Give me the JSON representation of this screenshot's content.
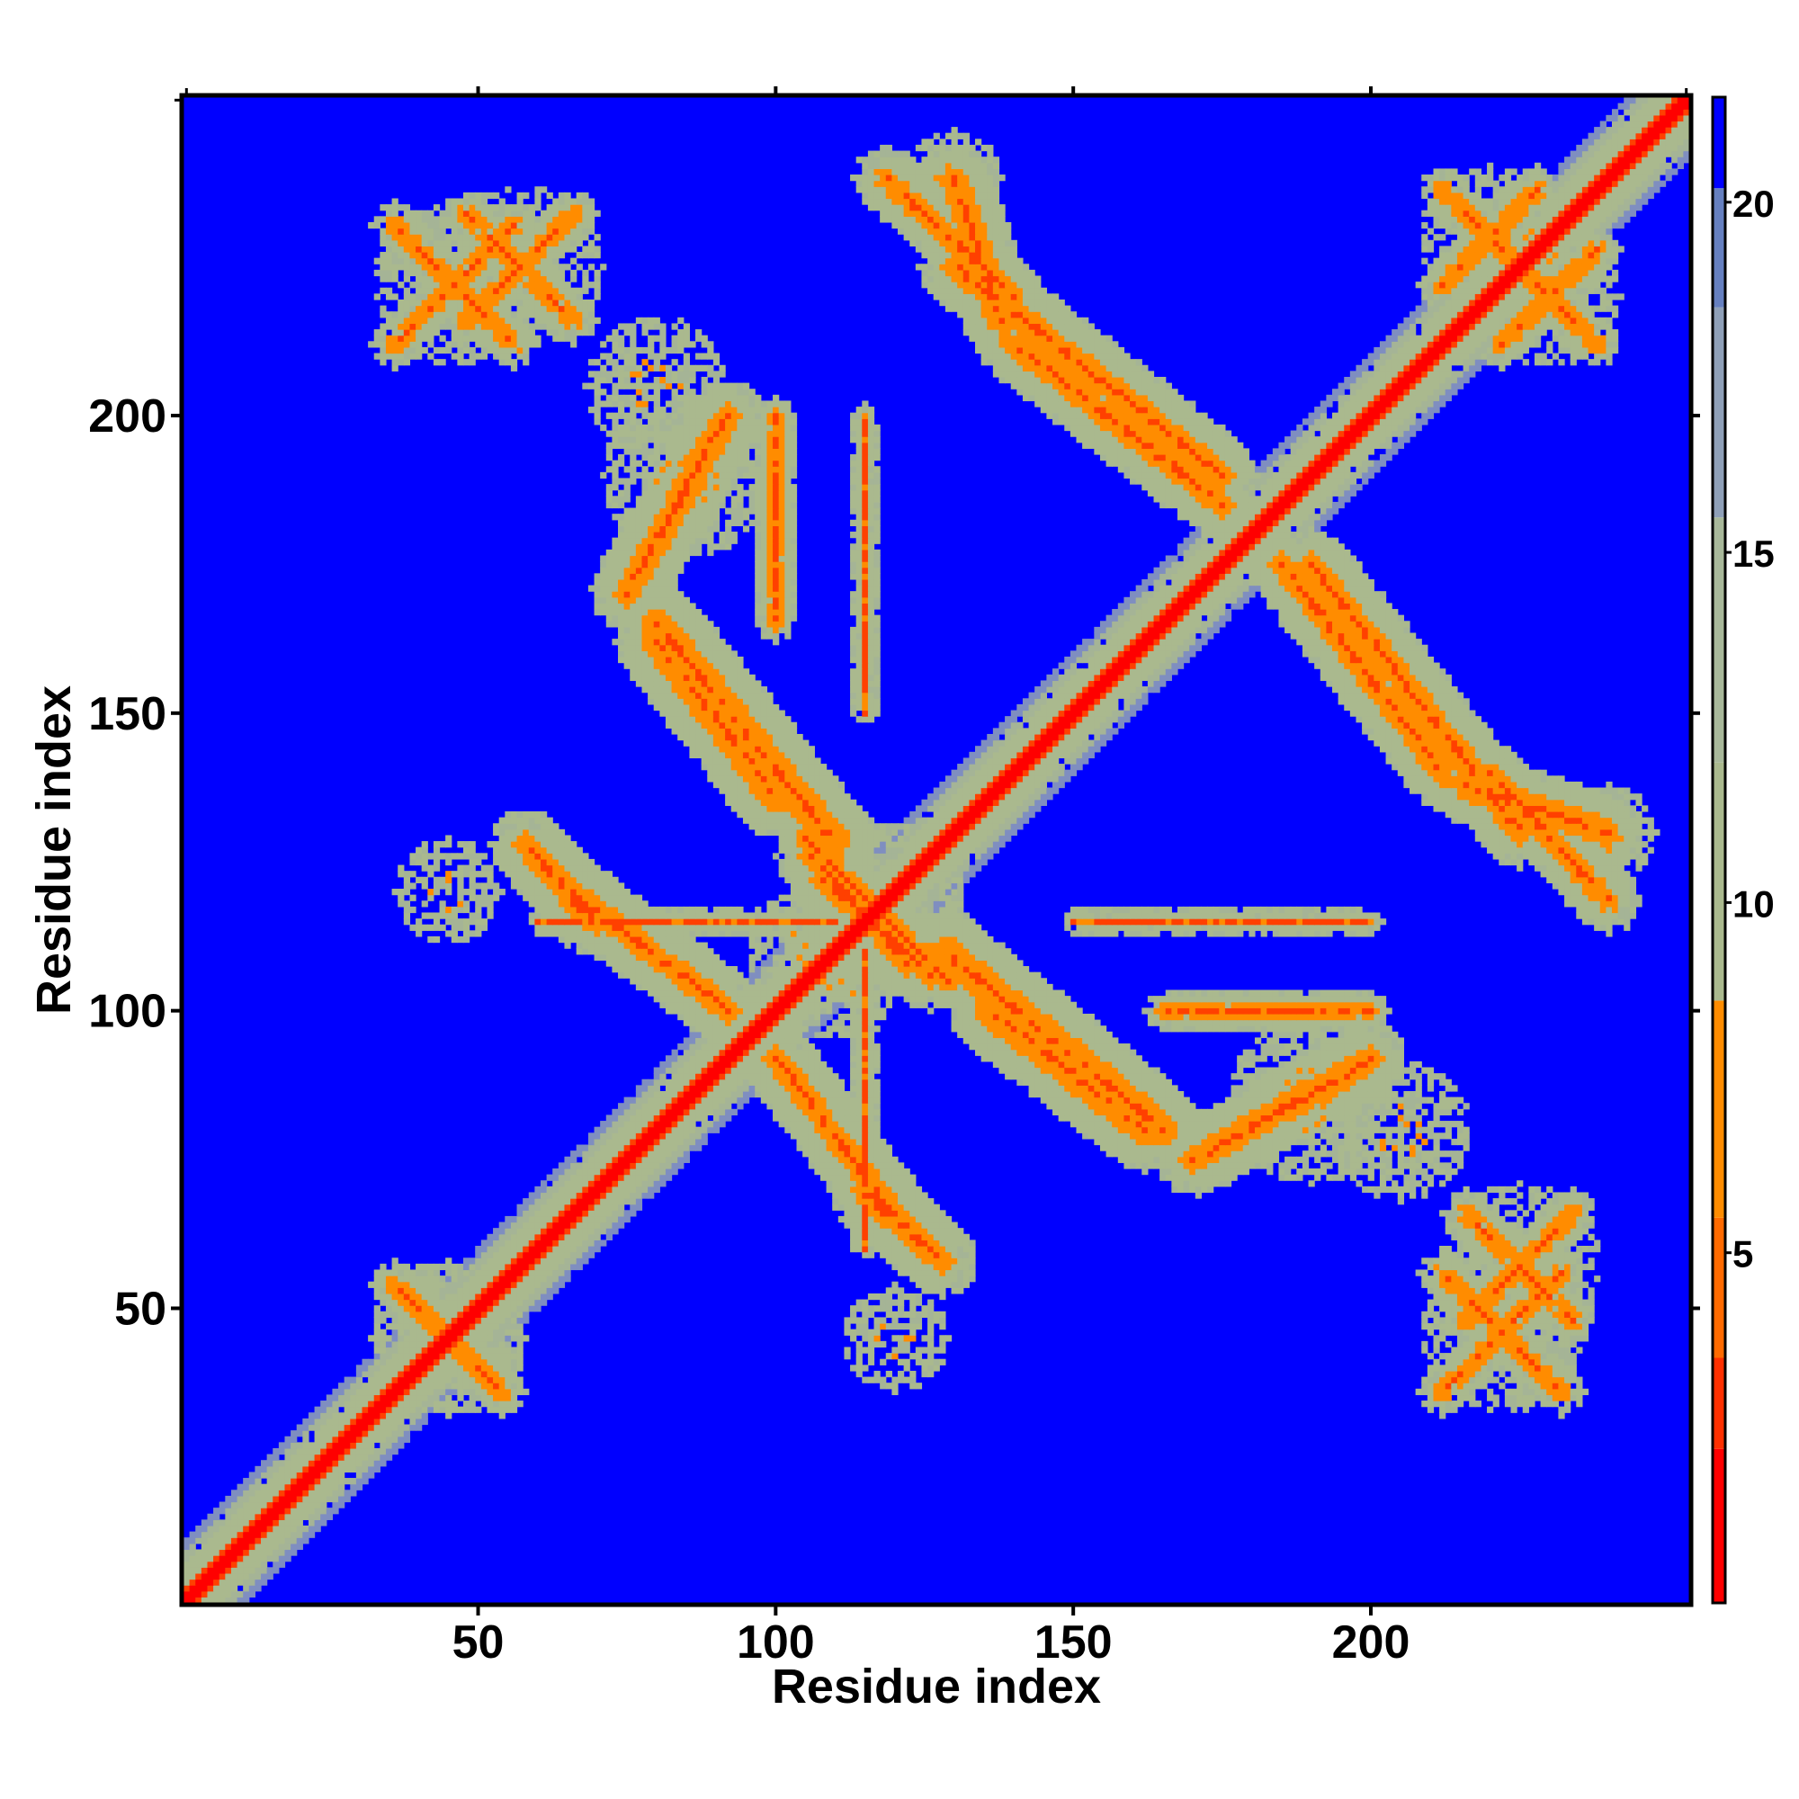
{
  "chart_data": {
    "type": "heatmap",
    "title": "",
    "xlabel": "Residue index",
    "ylabel": "Residue index",
    "n_residues": 253,
    "xlim": [
      1,
      253
    ],
    "ylim": [
      1,
      253
    ],
    "x_ticks": [
      50,
      100,
      150,
      200
    ],
    "y_ticks": [
      50,
      100,
      150,
      200
    ],
    "colorbar": {
      "ticks": [
        5,
        10,
        15,
        20
      ],
      "range": [
        0,
        21.5
      ],
      "colors": {
        "near": "#ff0000",
        "mid": "#ff8c00",
        "contact": "#aab98e",
        "background": "#0000ff"
      }
    },
    "value_scale": "distance (same scale as colorbar)",
    "far_value": 21,
    "diagonal": {
      "from": 1,
      "to": 253,
      "value": 2
    },
    "structure_features": [
      {
        "kind": "cross",
        "center": [
          45,
          45
        ],
        "arm": 9,
        "core": 4,
        "halo": 13
      },
      {
        "kind": "cross",
        "center": [
          117,
          117
        ],
        "arm": 12,
        "core": 4,
        "halo": 15
      },
      {
        "kind": "cross",
        "center": [
          222,
          46
        ],
        "arm": 10,
        "core": 5,
        "halo": 14
      },
      {
        "kind": "cross",
        "center": [
          57,
          225
        ],
        "arm": 9,
        "core": 5,
        "halo": 14
      },
      {
        "kind": "cross",
        "center": [
          220,
          230
        ],
        "arm": 8,
        "core": 5,
        "halo": 12
      },
      {
        "kind": "band",
        "from": [
          60,
          125
        ],
        "to": [
          70,
          115
        ],
        "width": 6
      },
      {
        "kind": "band",
        "from": [
          108,
          122
        ],
        "to": [
          126,
          106
        ],
        "width": 6
      },
      {
        "kind": "band",
        "from": [
          116,
          68
        ],
        "to": [
          128,
          58
        ],
        "width": 6
      },
      {
        "kind": "band",
        "from": [
          118,
          68
        ],
        "to": [
          100,
          92
        ],
        "width": 6
      },
      {
        "kind": "band",
        "from": [
          80,
          162
        ],
        "to": [
          100,
          136
        ],
        "width": 7
      },
      {
        "kind": "band",
        "from": [
          128,
          110
        ],
        "to": [
          165,
          80
        ],
        "width": 7
      },
      {
        "kind": "band",
        "from": [
          92,
          200
        ],
        "to": [
          75,
          170
        ],
        "width": 6
      },
      {
        "kind": "band",
        "from": [
          130,
          225
        ],
        "to": [
          175,
          190
        ],
        "width": 6
      },
      {
        "kind": "band",
        "from": [
          185,
          175
        ],
        "to": [
          212,
          140
        ],
        "width": 6
      },
      {
        "kind": "band",
        "from": [
          215,
          138
        ],
        "to": [
          240,
          130
        ],
        "width": 6
      },
      {
        "kind": "band",
        "from": [
          100,
          165
        ],
        "to": [
          100,
          200
        ],
        "width": 3
      },
      {
        "kind": "band",
        "from": [
          115,
          60
        ],
        "to": [
          115,
          110
        ],
        "width": 2
      },
      {
        "kind": "band",
        "from": [
          150,
          115
        ],
        "to": [
          200,
          115
        ],
        "width": 2
      },
      {
        "kind": "band",
        "from": [
          140,
          220
        ],
        "to": [
          118,
          240
        ],
        "width": 5
      },
      {
        "kind": "blob",
        "center": [
          80,
          205
        ],
        "r": 12
      },
      {
        "kind": "blob",
        "center": [
          190,
          85
        ],
        "r": 14
      },
      {
        "kind": "blob",
        "center": [
          45,
          120
        ],
        "r": 9
      },
      {
        "kind": "blob",
        "center": [
          240,
          130
        ],
        "r": 8
      },
      {
        "kind": "blob",
        "center": [
          230,
          225
        ],
        "r": 9
      },
      {
        "kind": "blob",
        "center": [
          110,
          105
        ],
        "r": 10
      }
    ]
  }
}
